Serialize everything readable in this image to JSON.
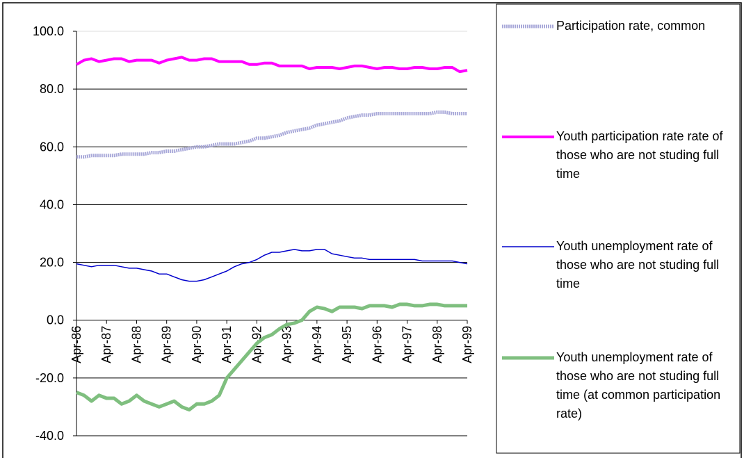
{
  "chart_data": {
    "type": "line",
    "categories": [
      "Apr-86",
      null,
      null,
      null,
      "Apr-87",
      null,
      null,
      null,
      "Apr-88",
      null,
      null,
      null,
      "Apr-89",
      null,
      null,
      null,
      "Apr-90",
      null,
      null,
      null,
      "Apr-91",
      null,
      null,
      null,
      "Apr-92",
      null,
      null,
      null,
      "Apr-93",
      null,
      null,
      null,
      "Apr-94",
      null,
      null,
      null,
      "Apr-95",
      null,
      null,
      null,
      "Apr-96",
      null,
      null,
      null,
      "Apr-97",
      null,
      null,
      null,
      "Apr-98",
      null,
      null,
      null,
      "Apr-99"
    ],
    "ylim": [
      -40,
      100
    ],
    "yticks": [
      {
        "value": -40,
        "label": "-40.0"
      },
      {
        "value": -20,
        "label": "-20.0"
      },
      {
        "value": 0,
        "label": "0.0"
      },
      {
        "value": 20,
        "label": "20.0"
      },
      {
        "value": 40,
        "label": "40.0"
      },
      {
        "value": 60,
        "label": "60.0"
      },
      {
        "value": 80,
        "label": "80.0"
      },
      {
        "value": 100,
        "label": "100.0"
      }
    ],
    "grid": true,
    "legend": "right",
    "series": [
      {
        "name": "Participation rate, common",
        "color": "#a9a9d9",
        "values": [
          56.5,
          56.5,
          57,
          57,
          57,
          57,
          57.5,
          57.5,
          57.5,
          57.5,
          58,
          58,
          58.5,
          58.5,
          59,
          59.5,
          60,
          60,
          60.5,
          61,
          61,
          61,
          61.5,
          62,
          63,
          63,
          63.5,
          64,
          65,
          65.5,
          66,
          66.5,
          67.5,
          68,
          68.5,
          69,
          70,
          70.5,
          71,
          71,
          71.5,
          71.5,
          71.5,
          71.5,
          71.5,
          71.5,
          71.5,
          71.5,
          72,
          72,
          71.5,
          71.5,
          71.5
        ]
      },
      {
        "name": "Youth participation rate rate of those who are not studing full time",
        "color": "#ff00ff",
        "values": [
          88.5,
          90,
          90.5,
          89.5,
          90,
          90.5,
          90.5,
          89.5,
          90,
          90,
          90,
          89,
          90,
          90.5,
          91,
          90,
          90,
          90.5,
          90.5,
          89.5,
          89.5,
          89.5,
          89.5,
          88.5,
          88.5,
          89,
          89,
          88,
          88,
          88,
          88,
          87,
          87.5,
          87.5,
          87.5,
          87,
          87.5,
          88,
          88,
          87.5,
          87,
          87.5,
          87.5,
          87,
          87,
          87.5,
          87.5,
          87,
          87,
          87.5,
          87.5,
          86,
          86.5
        ]
      },
      {
        "name": "Youth unemployment rate of those who are not studing full time",
        "color": "#0000cc",
        "values": [
          19.5,
          19,
          18.5,
          19,
          19,
          19,
          18.5,
          18,
          18,
          17.5,
          17,
          16,
          16,
          15,
          14,
          13.5,
          13.5,
          14,
          15,
          16,
          17,
          18.5,
          19.5,
          20,
          21,
          22.5,
          23.5,
          23.5,
          24,
          24.5,
          24,
          24,
          24.5,
          24.5,
          23,
          22.5,
          22,
          21.5,
          21.5,
          21,
          21,
          21,
          21,
          21,
          21,
          21,
          20.5,
          20.5,
          20.5,
          20.5,
          20.5,
          20,
          19.5
        ]
      },
      {
        "name": "Youth unemployment rate of those who are not studing full time (at common participation rate)",
        "color": "#7fbf7f",
        "values": [
          -25,
          -26,
          -28,
          -26,
          -27,
          -27,
          -29,
          -28,
          -26,
          -28,
          -29,
          -30,
          -29,
          -28,
          -30,
          -31,
          -29,
          -29,
          -28,
          -26,
          -20,
          -17,
          -14,
          -11,
          -8,
          -6,
          -5,
          -3,
          -1.5,
          -1,
          0,
          3,
          4.5,
          4,
          3,
          4.5,
          4.5,
          4.5,
          4,
          5,
          5,
          5,
          4.5,
          5.5,
          5.5,
          5,
          5,
          5.5,
          5.5,
          5,
          5,
          5,
          5
        ]
      }
    ]
  }
}
